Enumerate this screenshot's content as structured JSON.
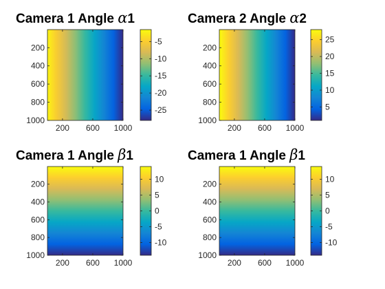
{
  "chart_data": [
    {
      "type": "heatmap",
      "title": "Camera 1 Angle α1",
      "title_main": "Camera 1 Angle ",
      "title_symbol": "α",
      "title_index": "1",
      "gradient_direction": "horizontal",
      "x_ticks": [
        "200",
        "600",
        "1000"
      ],
      "y_ticks": [
        "200",
        "400",
        "600",
        "800",
        "1000"
      ],
      "x_tick_values": [
        200,
        600,
        1000
      ],
      "y_tick_values": [
        200,
        400,
        600,
        800,
        1000
      ],
      "xlim": [
        1,
        1000
      ],
      "ylim": [
        1,
        1000
      ],
      "value_start": -2,
      "value_end": -28,
      "colorbar": {
        "ticks": [
          "-5",
          "-10",
          "-15",
          "-20",
          "-25"
        ],
        "tick_values": [
          -5,
          -10,
          -15,
          -20,
          -25
        ],
        "range": [
          -28,
          -1.5
        ]
      }
    },
    {
      "type": "heatmap",
      "title": "Camera 2 Angle α2",
      "title_main": "Camera 2 Angle ",
      "title_symbol": "α",
      "title_index": "2",
      "gradient_direction": "horizontal",
      "x_ticks": [
        "200",
        "600",
        "1000"
      ],
      "y_ticks": [
        "200",
        "400",
        "600",
        "800",
        "1000"
      ],
      "x_tick_values": [
        200,
        600,
        1000
      ],
      "y_tick_values": [
        200,
        400,
        600,
        800,
        1000
      ],
      "xlim": [
        1,
        1000
      ],
      "ylim": [
        1,
        1000
      ],
      "value_start": 28,
      "value_end": 1,
      "colorbar": {
        "ticks": [
          "25",
          "20",
          "15",
          "10",
          "5"
        ],
        "tick_values": [
          25,
          20,
          15,
          10,
          5
        ],
        "range": [
          1,
          28
        ]
      }
    },
    {
      "type": "heatmap",
      "title": "Camera 1 Angle β1",
      "title_main": "Camera 1 Angle ",
      "title_symbol": "β",
      "title_index": "1",
      "gradient_direction": "vertical",
      "x_ticks": [
        "200",
        "600",
        "1000"
      ],
      "y_ticks": [
        "200",
        "400",
        "600",
        "800",
        "1000"
      ],
      "x_tick_values": [
        200,
        600,
        1000
      ],
      "y_tick_values": [
        200,
        400,
        600,
        800,
        1000
      ],
      "xlim": [
        1,
        1000
      ],
      "ylim": [
        1,
        1000
      ],
      "value_start": 14,
      "value_end": -14,
      "colorbar": {
        "ticks": [
          "10",
          "5",
          "0",
          "-5",
          "-10"
        ],
        "tick_values": [
          10,
          5,
          0,
          -5,
          -10
        ],
        "range": [
          -14,
          14
        ]
      }
    },
    {
      "type": "heatmap",
      "title": "Camera 1 Angle β1",
      "title_main": "Camera 1 Angle ",
      "title_symbol": "β",
      "title_index": "1",
      "gradient_direction": "vertical",
      "x_ticks": [
        "200",
        "600",
        "1000"
      ],
      "y_ticks": [
        "200",
        "400",
        "600",
        "800",
        "1000"
      ],
      "x_tick_values": [
        200,
        600,
        1000
      ],
      "y_tick_values": [
        200,
        400,
        600,
        800,
        1000
      ],
      "xlim": [
        1,
        1000
      ],
      "ylim": [
        1,
        1000
      ],
      "value_start": 14,
      "value_end": -14,
      "colorbar": {
        "ticks": [
          "10",
          "5",
          "0",
          "-5",
          "-10"
        ],
        "tick_values": [
          10,
          5,
          0,
          -5,
          -10
        ],
        "range": [
          -14,
          14
        ]
      }
    }
  ],
  "colormap": {
    "name": "parula",
    "stops": [
      "#352A87",
      "#0363E1",
      "#1485D4",
      "#06A7C6",
      "#38B99E",
      "#92BF73",
      "#D9BA56",
      "#FCCE2E",
      "#F9FB0E"
    ]
  }
}
